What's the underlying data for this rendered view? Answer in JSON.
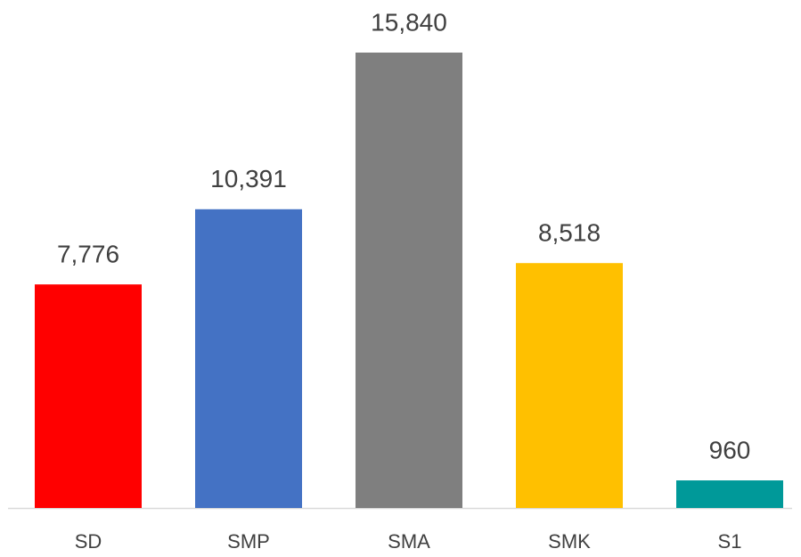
{
  "chart_data": {
    "type": "bar",
    "categories": [
      "SD",
      "SMP",
      "SMA",
      "SMK",
      "S1"
    ],
    "values": [
      7776,
      10391,
      15840,
      8518,
      960
    ],
    "value_labels": [
      "7,776",
      "10,391",
      "15,840",
      "8,518",
      "960"
    ],
    "colors": [
      "#ff0000",
      "#4472c4",
      "#7f7f7f",
      "#ffc000",
      "#009999"
    ]
  }
}
